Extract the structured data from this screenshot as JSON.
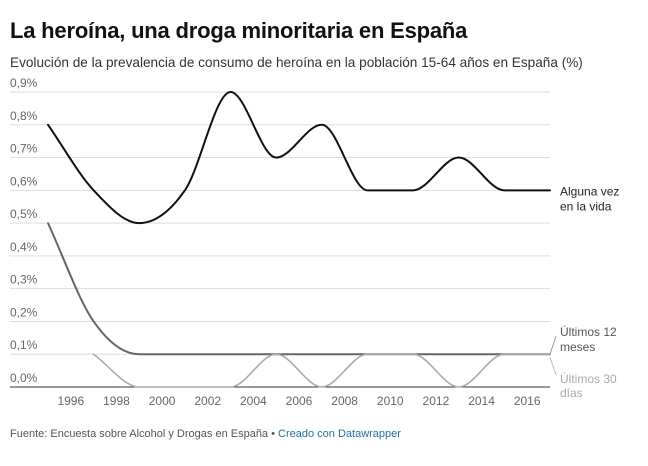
{
  "title": "La heroína, una droga minoritaria en España",
  "subtitle": "Evolución de la prevalencia de consumo de heroína en la población 15-64 años en España (%)",
  "footer": {
    "source": "Fuente: Encuesta sobre Alcohol y Drogas en España",
    "separator": " • ",
    "credit": "Creado con Datawrapper"
  },
  "chart_data": {
    "type": "line",
    "title": "La heroína, una droga minoritaria en España",
    "subtitle": "Evolución de la prevalencia de consumo de heroína en la población 15-64 años en España (%)",
    "xlabel": "",
    "ylabel": "",
    "xlim": [
      1995,
      2017
    ],
    "ylim": [
      0,
      0.9
    ],
    "x_ticks": [
      1996,
      1998,
      2000,
      2002,
      2004,
      2006,
      2008,
      2010,
      2012,
      2014,
      2016
    ],
    "y_ticks": [
      "0,0%",
      "0,1%",
      "0,2%",
      "0,3%",
      "0,4%",
      "0,5%",
      "0,6%",
      "0,7%",
      "0,8%",
      "0,9%"
    ],
    "grid": "horizontal",
    "legend": "direct labels at right end of lines",
    "series": [
      {
        "name": "Alguna vez en la vida",
        "label_lines": [
          "Alguna vez",
          "en la vida"
        ],
        "color": "#111111",
        "x": [
          1995,
          1997,
          1999,
          2001,
          2003,
          2005,
          2007,
          2009,
          2011,
          2013,
          2015,
          2017
        ],
        "values": [
          0.8,
          0.6,
          0.5,
          0.6,
          0.9,
          0.7,
          0.8,
          0.6,
          0.6,
          0.7,
          0.6,
          0.6
        ]
      },
      {
        "name": "Últimos 12 meses",
        "label_lines": [
          "Últimos 12",
          "meses"
        ],
        "color": "#666666",
        "x": [
          1995,
          1997,
          1999,
          2001,
          2003,
          2005,
          2007,
          2009,
          2011,
          2013,
          2015,
          2017
        ],
        "values": [
          0.5,
          0.2,
          0.1,
          0.1,
          0.1,
          0.1,
          0.1,
          0.1,
          0.1,
          0.1,
          0.1,
          0.1
        ]
      },
      {
        "name": "Últimos 30 días",
        "label_lines": [
          "Últimos 30",
          "días"
        ],
        "color": "#aaaaaa",
        "x": [
          1997,
          1999,
          2001,
          2003,
          2005,
          2007,
          2009,
          2011,
          2013,
          2015,
          2017
        ],
        "values": [
          0.1,
          0.0,
          0.0,
          0.0,
          0.1,
          0.0,
          0.1,
          0.1,
          0.0,
          0.1,
          0.1
        ]
      }
    ]
  }
}
